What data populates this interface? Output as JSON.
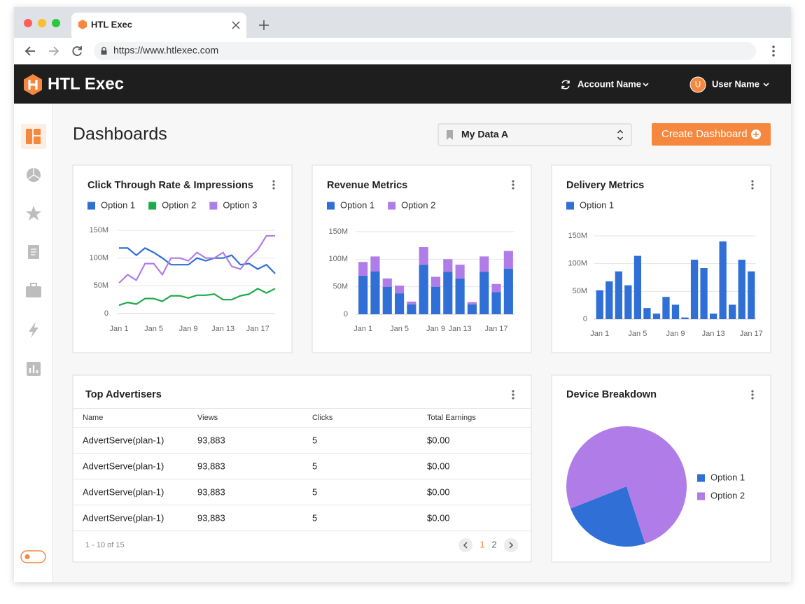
{
  "browser": {
    "tab_title": "HTL Exec",
    "url": "https://www.htlexec.com"
  },
  "header": {
    "brand": "HTL Exec",
    "account": "Account Name",
    "user": "User Name",
    "avatar": "U"
  },
  "page": {
    "title": "Dashboards",
    "data_source": "My Data A",
    "create_button": "Create Dashboard"
  },
  "chart_data": [
    {
      "type": "line",
      "title": "Click Through Rate & Impressions",
      "categories": [
        "Jan 1",
        null,
        null,
        null,
        "Jan 5",
        null,
        null,
        null,
        "Jan 9",
        null,
        null,
        null,
        "Jan 13",
        null,
        null,
        null,
        "Jan 17",
        null,
        null
      ],
      "series": [
        {
          "name": "Option 1",
          "color": "#2f6fd6",
          "values": [
            118,
            118,
            105,
            118,
            110,
            100,
            88,
            88,
            88,
            100,
            95,
            100,
            100,
            105,
            88,
            90,
            80,
            88,
            72
          ]
        },
        {
          "name": "Option 2",
          "color": "#1faa4a",
          "values": [
            15,
            20,
            17,
            27,
            27,
            22,
            32,
            32,
            28,
            33,
            33,
            35,
            25,
            25,
            32,
            35,
            45,
            37,
            45
          ]
        },
        {
          "name": "Option 3",
          "color": "#b07de8",
          "values": [
            55,
            70,
            60,
            90,
            90,
            70,
            100,
            100,
            95,
            110,
            100,
            100,
            110,
            85,
            80,
            100,
            115,
            140,
            140
          ]
        }
      ],
      "ylim": [
        0,
        150
      ],
      "yticks": [
        0,
        {
          "value": 50,
          "label": "50M"
        },
        {
          "value": 100,
          "label": "100M"
        },
        {
          "value": 150,
          "label": "150M"
        }
      ],
      "grid": true
    },
    {
      "type": "bar",
      "stacked": true,
      "title": "Revenue Metrics",
      "categories": [
        "Jan 1",
        null,
        null,
        "Jan 5",
        null,
        null,
        "Jan 9",
        null,
        "Jan 13",
        null,
        null,
        "Jan 17",
        null
      ],
      "series": [
        {
          "name": "Option 1",
          "color": "#2f6fd6",
          "values": [
            70,
            78,
            50,
            38,
            18,
            90,
            50,
            77,
            65,
            18,
            77,
            40,
            83
          ]
        },
        {
          "name": "Option 2",
          "color": "#b07de8",
          "values": [
            25,
            27,
            15,
            14,
            5,
            32,
            18,
            23,
            25,
            4,
            28,
            15,
            32
          ]
        }
      ],
      "ylim": [
        0,
        150
      ],
      "yticks": [
        0,
        {
          "value": 50,
          "label": "50M"
        },
        {
          "value": 100,
          "label": "100M"
        },
        {
          "value": 150,
          "label": "150M"
        }
      ],
      "grid": true
    },
    {
      "type": "bar",
      "title": "Delivery Metrics",
      "categories": [
        "Jan 1",
        null,
        null,
        null,
        "Jan 5",
        null,
        null,
        null,
        "Jan 9",
        null,
        null,
        null,
        "Jan 13",
        null,
        null,
        null,
        "Jan 17"
      ],
      "series": [
        {
          "name": "Option 1",
          "color": "#2f6fd6",
          "values": [
            52,
            68,
            86,
            61,
            114,
            20,
            10,
            40,
            26,
            3,
            107,
            92,
            10,
            140,
            26,
            107,
            86
          ]
        }
      ],
      "ylim": [
        0,
        150
      ],
      "yticks": [
        0,
        {
          "value": 50,
          "label": "50M"
        },
        {
          "value": 100,
          "label": "100M"
        },
        {
          "value": 150,
          "label": "150M"
        }
      ],
      "grid": true
    },
    {
      "type": "pie",
      "title": "Device Breakdown",
      "categories": [
        "Option 1",
        "Option 2"
      ],
      "values": [
        24,
        76
      ],
      "colors": [
        "#2f6fd6",
        "#b07de8"
      ]
    }
  ],
  "table": {
    "title": "Top Advertisers",
    "columns": [
      "Name",
      "Views",
      "Clicks",
      "Total Earnings"
    ],
    "rows": [
      [
        "AdvertServe(plan-1)",
        "93,883",
        "5",
        "$0.00"
      ],
      [
        "AdvertServe(plan-1)",
        "93,883",
        "5",
        "$0.00"
      ],
      [
        "AdvertServe(plan-1)",
        "93,883",
        "5",
        "$0.00"
      ],
      [
        "AdvertServe(plan-1)",
        "93,883",
        "5",
        "$0.00"
      ]
    ],
    "range": "1 - 10 of 15",
    "pages": [
      "1",
      "2"
    ]
  }
}
